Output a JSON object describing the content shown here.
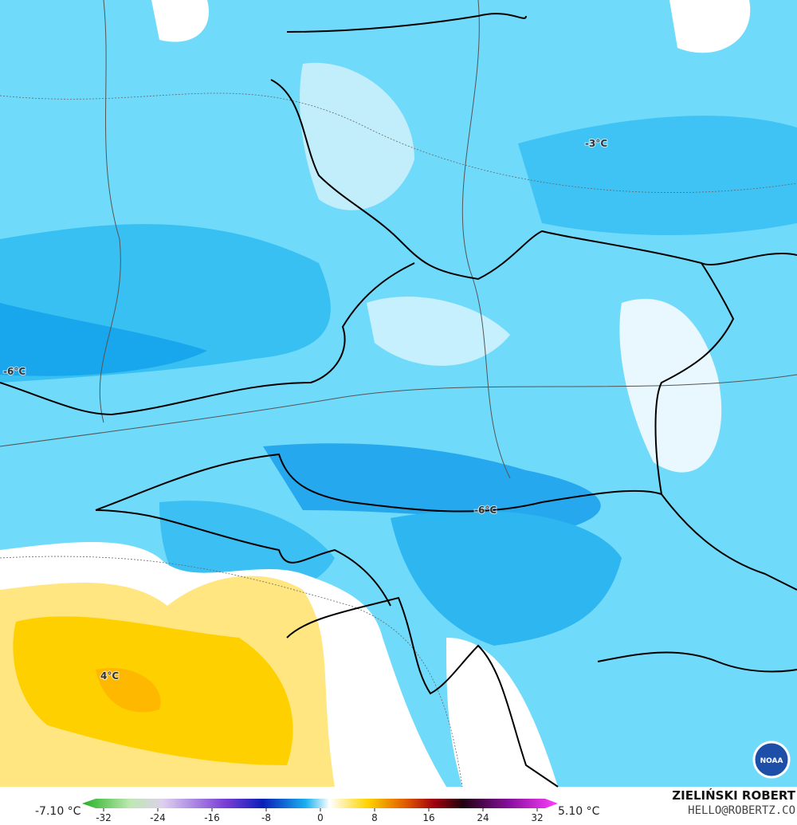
{
  "map": {
    "labels": [
      "-6°C",
      "-3°C",
      "-6°C",
      "4°C"
    ],
    "colorbar": {
      "range": [
        -32,
        32
      ],
      "ticks": [
        -32,
        -24,
        -16,
        -8,
        0,
        8,
        16,
        24,
        32
      ],
      "min_label": "-7.10 °C",
      "max_label": "5.10 °C"
    },
    "credit": {
      "author": "ZIELIŃSKI ROBERT",
      "contact": "HELLO@ROBERTZ.CO",
      "logo": "NOAA"
    }
  }
}
